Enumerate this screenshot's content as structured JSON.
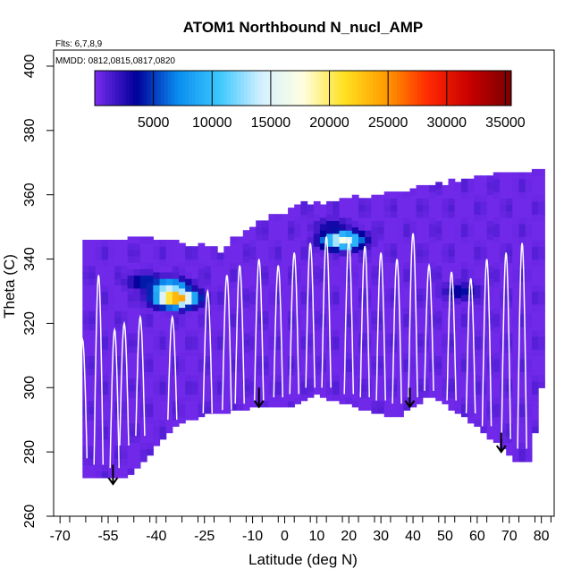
{
  "chart_data": {
    "type": "heatmap",
    "title": "ATOM1 Northbound N_nucl_AMP",
    "annotations": [
      "Flts: 6,7,8,9",
      "MMDD: 0812,0815,0817,0820"
    ],
    "xlabel": "Latitude (deg N)",
    "ylabel": "Theta (C)",
    "xlim": [
      -72,
      84
    ],
    "ylim": [
      260,
      405
    ],
    "x_ticks": [
      -70,
      -55,
      -40,
      -25,
      -10,
      0,
      10,
      20,
      30,
      40,
      50,
      60,
      70,
      80
    ],
    "y_ticks": [
      260,
      280,
      300,
      320,
      340,
      360,
      380,
      400
    ],
    "colorbar": {
      "min": 0,
      "max": 35500,
      "ticks": [
        5000,
        10000,
        15000,
        20000,
        25000,
        30000,
        35000
      ],
      "stops": [
        "#7a2cf0",
        "#00009a",
        "#0a8cf0",
        "#3cc8ff",
        "#d4f0ff",
        "#ffffe0",
        "#ffe020",
        "#ff9a00",
        "#ff2a00",
        "#c80000",
        "#7a0000"
      ]
    },
    "domain_top": [
      [
        -63,
        346
      ],
      [
        -40,
        346
      ],
      [
        -20,
        342
      ],
      [
        -10,
        350
      ],
      [
        5,
        356
      ],
      [
        20,
        358
      ],
      [
        40,
        361
      ],
      [
        55,
        364
      ],
      [
        72,
        366
      ],
      [
        74,
        367
      ]
    ],
    "domain_bottom": [
      [
        -64,
        272
      ],
      [
        -50,
        272
      ],
      [
        -45,
        276
      ],
      [
        -35,
        288
      ],
      [
        -25,
        292
      ],
      [
        -10,
        294
      ],
      [
        0,
        294
      ],
      [
        10,
        298
      ],
      [
        20,
        295
      ],
      [
        35,
        291
      ],
      [
        45,
        298
      ],
      [
        55,
        292
      ],
      [
        65,
        284
      ],
      [
        72,
        277
      ],
      [
        76,
        277
      ],
      [
        76,
        286
      ],
      [
        78,
        286
      ],
      [
        79,
        300
      ],
      [
        80,
        300
      ]
    ],
    "hot_spots": [
      {
        "lat": -34,
        "theta": 328,
        "value": 27000
      },
      {
        "lat": -36,
        "theta": 331,
        "value": 14000
      },
      {
        "lat": -43,
        "theta": 333,
        "value": 5000
      },
      {
        "lat": 18,
        "theta": 346,
        "value": 17000
      },
      {
        "lat": 15,
        "theta": 350,
        "value": 3500
      },
      {
        "lat": 55,
        "theta": 330,
        "value": 4000
      }
    ],
    "profiles": [
      {
        "lat": -63,
        "bottom": 278,
        "top": 315
      },
      {
        "lat": -58,
        "bottom": 276,
        "top": 335
      },
      {
        "lat": -53,
        "bottom": 275,
        "top": 318
      },
      {
        "lat": -50,
        "bottom": 282,
        "top": 320
      },
      {
        "lat": -45,
        "bottom": 285,
        "top": 322
      },
      {
        "lat": -35,
        "bottom": 290,
        "top": 322
      },
      {
        "lat": -24,
        "bottom": 292,
        "top": 330
      },
      {
        "lat": -18,
        "bottom": 293,
        "top": 335
      },
      {
        "lat": -14,
        "bottom": 295,
        "top": 338
      },
      {
        "lat": -8,
        "bottom": 296,
        "top": 340
      },
      {
        "lat": -2,
        "bottom": 297,
        "top": 338
      },
      {
        "lat": 3,
        "bottom": 298,
        "top": 342
      },
      {
        "lat": 8,
        "bottom": 300,
        "top": 345
      },
      {
        "lat": 13,
        "bottom": 300,
        "top": 347
      },
      {
        "lat": 20,
        "bottom": 298,
        "top": 346
      },
      {
        "lat": 25,
        "bottom": 297,
        "top": 344
      },
      {
        "lat": 30,
        "bottom": 296,
        "top": 342
      },
      {
        "lat": 35,
        "bottom": 295,
        "top": 340
      },
      {
        "lat": 40,
        "bottom": 297,
        "top": 348
      },
      {
        "lat": 45,
        "bottom": 299,
        "top": 338
      },
      {
        "lat": 52,
        "bottom": 296,
        "top": 336
      },
      {
        "lat": 58,
        "bottom": 292,
        "top": 334
      },
      {
        "lat": 63,
        "bottom": 288,
        "top": 340
      },
      {
        "lat": 69,
        "bottom": 284,
        "top": 342
      },
      {
        "lat": 74,
        "bottom": 281,
        "top": 345
      }
    ],
    "arrows": [
      {
        "lat": -53.5,
        "theta_start": 276,
        "theta_end": 270
      },
      {
        "lat": -8,
        "theta_start": 300,
        "theta_end": 294
      },
      {
        "lat": 39,
        "theta_start": 300,
        "theta_end": 294
      },
      {
        "lat": 67.5,
        "theta_start": 286,
        "theta_end": 280
      }
    ]
  }
}
